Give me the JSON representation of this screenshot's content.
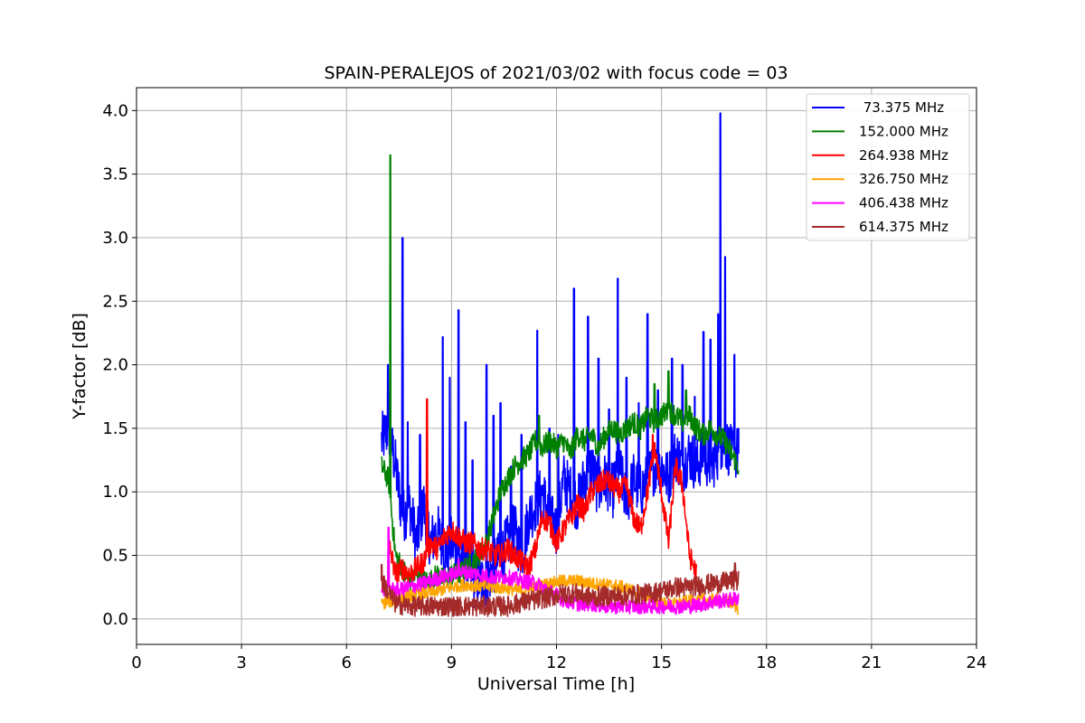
{
  "chart_data": {
    "type": "line",
    "title": "SPAIN-PERALEJOS of 2021/03/02 with focus code = 03",
    "xlabel": "Universal Time [h]",
    "ylabel": "Y-factor [dB]",
    "xlim": [
      0,
      24
    ],
    "ylim": [
      -0.2,
      4.18
    ],
    "xticks": [
      0,
      3,
      6,
      9,
      12,
      15,
      18,
      21,
      24
    ],
    "xtick_labels": [
      "0",
      "3",
      "6",
      "9",
      "12",
      "15",
      "18",
      "21",
      "24"
    ],
    "yticks": [
      0.0,
      0.5,
      1.0,
      1.5,
      2.0,
      2.5,
      3.0,
      3.5,
      4.0
    ],
    "ytick_labels": [
      "0.0",
      "0.5",
      "1.0",
      "1.5",
      "2.0",
      "2.5",
      "3.0",
      "3.5",
      "4.0"
    ],
    "grid": true,
    "legend_position": "top-right",
    "series": [
      {
        "name": " 73.375 MHz",
        "color": "#0000ff",
        "x": [
          7.0,
          7.2,
          7.4,
          7.6,
          7.8,
          8.0,
          8.2,
          8.4,
          8.6,
          8.8,
          9.0,
          9.2,
          9.4,
          9.6,
          9.8,
          10.0,
          10.2,
          10.4,
          10.6,
          10.8,
          11.0,
          11.2,
          11.4,
          11.6,
          11.8,
          12.0,
          12.2,
          12.4,
          12.6,
          12.8,
          13.0,
          13.2,
          13.4,
          13.6,
          13.8,
          14.0,
          14.2,
          14.4,
          14.6,
          14.8,
          15.0,
          15.2,
          15.4,
          15.6,
          15.8,
          16.0,
          16.2,
          16.4,
          16.6,
          16.8,
          17.0,
          17.2
        ],
        "y": [
          1.4,
          1.5,
          1.2,
          0.8,
          0.9,
          0.6,
          0.9,
          0.6,
          0.7,
          0.5,
          0.6,
          0.5,
          0.4,
          0.3,
          0.3,
          0.3,
          0.4,
          0.5,
          0.6,
          0.7,
          0.5,
          0.8,
          0.9,
          1.0,
          0.8,
          0.7,
          1.1,
          1.0,
          0.9,
          1.1,
          1.2,
          1.0,
          1.1,
          1.0,
          1.2,
          0.9,
          1.1,
          1.0,
          1.1,
          1.2,
          1.2,
          1.1,
          1.3,
          1.2,
          1.3,
          1.2,
          1.3,
          1.2,
          1.3,
          1.4,
          1.3,
          1.3
        ],
        "spikes": [
          [
            7.08,
            1.6
          ],
          [
            7.18,
            2.0
          ],
          [
            7.3,
            1.5
          ],
          [
            7.6,
            3.0
          ],
          [
            7.75,
            1.55
          ],
          [
            8.1,
            1.45
          ],
          [
            8.75,
            2.22
          ],
          [
            8.95,
            1.9
          ],
          [
            9.2,
            2.43
          ],
          [
            9.4,
            1.55
          ],
          [
            9.6,
            1.25
          ],
          [
            10.0,
            2.0
          ],
          [
            10.2,
            1.6
          ],
          [
            10.4,
            1.7
          ],
          [
            10.7,
            1.2
          ],
          [
            11.0,
            1.45
          ],
          [
            11.45,
            2.27
          ],
          [
            11.8,
            1.5
          ],
          [
            12.05,
            1.45
          ],
          [
            12.5,
            2.6
          ],
          [
            12.9,
            2.38
          ],
          [
            13.2,
            2.05
          ],
          [
            13.5,
            1.65
          ],
          [
            13.75,
            2.68
          ],
          [
            14.0,
            1.9
          ],
          [
            14.35,
            1.7
          ],
          [
            14.6,
            2.4
          ],
          [
            14.9,
            1.8
          ],
          [
            15.3,
            2.05
          ],
          [
            15.6,
            2.0
          ],
          [
            15.95,
            1.75
          ],
          [
            16.2,
            2.26
          ],
          [
            16.4,
            2.2
          ],
          [
            16.62,
            2.4
          ],
          [
            16.68,
            3.98
          ],
          [
            16.82,
            2.85
          ],
          [
            17.08,
            2.08
          ],
          [
            17.2,
            1.5
          ]
        ]
      },
      {
        "name": "152.000 MHz",
        "color": "#008000",
        "x": [
          7.0,
          7.2,
          7.4,
          7.6,
          7.8,
          8.0,
          8.2,
          8.4,
          8.6,
          8.8,
          9.0,
          9.2,
          9.4,
          9.6,
          9.8,
          10.0,
          10.2,
          10.4,
          10.6,
          10.8,
          11.0,
          11.2,
          11.4,
          11.6,
          11.8,
          12.0,
          12.2,
          12.4,
          12.6,
          12.8,
          13.0,
          13.2,
          13.4,
          13.6,
          13.8,
          14.0,
          14.2,
          14.4,
          14.6,
          14.8,
          15.0,
          15.2,
          15.4,
          15.6,
          15.8,
          16.0,
          16.2,
          16.4,
          16.6,
          16.8,
          17.0,
          17.2
        ],
        "y": [
          1.2,
          1.1,
          0.5,
          0.4,
          0.3,
          0.35,
          0.3,
          0.3,
          0.35,
          0.3,
          0.35,
          0.35,
          0.4,
          0.45,
          0.5,
          0.6,
          0.8,
          1.0,
          1.1,
          1.2,
          1.25,
          1.3,
          1.4,
          1.35,
          1.4,
          1.35,
          1.4,
          1.3,
          1.45,
          1.4,
          1.45,
          1.35,
          1.45,
          1.5,
          1.45,
          1.5,
          1.55,
          1.5,
          1.6,
          1.55,
          1.6,
          1.65,
          1.6,
          1.55,
          1.6,
          1.5,
          1.45,
          1.5,
          1.45,
          1.4,
          1.3,
          1.2
        ],
        "spikes": [
          [
            7.25,
            3.65
          ],
          [
            11.5,
            1.6
          ],
          [
            14.8,
            1.85
          ],
          [
            15.2,
            1.95
          ],
          [
            15.7,
            1.8
          ]
        ]
      },
      {
        "name": "264.938 MHz",
        "color": "#ff0000",
        "x": [
          7.2,
          7.4,
          7.6,
          7.8,
          8.0,
          8.2,
          8.4,
          8.6,
          8.8,
          9.0,
          9.2,
          9.4,
          9.6,
          9.8,
          10.0,
          10.2,
          10.4,
          10.6,
          10.8,
          11.0,
          11.2,
          11.4,
          11.6,
          11.8,
          12.0,
          12.2,
          12.4,
          12.6,
          12.8,
          13.0,
          13.2,
          13.4,
          13.6,
          13.8,
          14.0,
          14.2,
          14.4,
          14.6,
          14.8,
          15.0,
          15.2,
          15.4,
          15.6,
          15.8,
          16.0
        ],
        "y": [
          0.6,
          0.35,
          0.4,
          0.35,
          0.4,
          0.45,
          0.6,
          0.55,
          0.65,
          0.7,
          0.65,
          0.6,
          0.6,
          0.55,
          0.55,
          0.5,
          0.5,
          0.55,
          0.5,
          0.45,
          0.4,
          0.55,
          0.8,
          0.75,
          0.6,
          0.7,
          0.8,
          0.9,
          0.85,
          1.0,
          1.05,
          1.1,
          1.05,
          1.0,
          1.05,
          0.8,
          0.7,
          1.0,
          1.35,
          1.0,
          0.6,
          1.2,
          1.05,
          0.5,
          0.35
        ],
        "spikes": [
          [
            8.3,
            1.73
          ],
          [
            14.75,
            1.45
          ]
        ]
      },
      {
        "name": "326.750 MHz",
        "color": "#ffa500",
        "x": [
          7.0,
          7.4,
          7.8,
          8.2,
          8.6,
          9.0,
          9.4,
          9.8,
          10.2,
          10.6,
          11.0,
          11.4,
          11.8,
          12.2,
          12.6,
          13.0,
          13.4,
          13.8,
          14.2,
          14.6,
          15.0,
          15.4,
          15.8,
          16.2,
          16.6,
          17.0,
          17.2
        ],
        "y": [
          0.12,
          0.15,
          0.18,
          0.2,
          0.22,
          0.25,
          0.27,
          0.26,
          0.25,
          0.24,
          0.22,
          0.25,
          0.28,
          0.3,
          0.3,
          0.28,
          0.27,
          0.26,
          0.22,
          0.18,
          0.12,
          0.12,
          0.14,
          0.15,
          0.15,
          0.13,
          0.08
        ],
        "spikes": []
      },
      {
        "name": "406.438 MHz",
        "color": "#ff00ff",
        "x": [
          7.0,
          7.2,
          7.4,
          7.8,
          8.2,
          8.6,
          9.0,
          9.4,
          9.8,
          10.2,
          10.6,
          11.0,
          11.4,
          11.8,
          12.2,
          12.6,
          13.0,
          13.4,
          13.8,
          14.2,
          14.6,
          15.0,
          15.4,
          15.8,
          16.2,
          16.6,
          17.0,
          17.2
        ],
        "y": [
          0.22,
          0.25,
          0.22,
          0.25,
          0.28,
          0.32,
          0.35,
          0.37,
          0.35,
          0.33,
          0.33,
          0.3,
          0.28,
          0.22,
          0.15,
          0.12,
          0.12,
          0.1,
          0.1,
          0.1,
          0.1,
          0.1,
          0.1,
          0.1,
          0.12,
          0.14,
          0.15,
          0.17
        ],
        "spikes": [
          [
            7.2,
            0.72
          ],
          [
            9.2,
            0.47
          ]
        ]
      },
      {
        "name": "614.375 MHz",
        "color": "#a52a2a",
        "x": [
          7.0,
          7.4,
          7.8,
          8.2,
          8.6,
          9.0,
          9.4,
          9.8,
          10.2,
          10.6,
          11.0,
          11.4,
          11.8,
          12.2,
          12.6,
          13.0,
          13.4,
          13.8,
          14.2,
          14.6,
          15.0,
          15.4,
          15.8,
          16.2,
          16.6,
          17.0,
          17.2
        ],
        "y": [
          0.3,
          0.12,
          0.1,
          0.1,
          0.1,
          0.1,
          0.1,
          0.1,
          0.1,
          0.1,
          0.13,
          0.15,
          0.17,
          0.2,
          0.2,
          0.17,
          0.18,
          0.18,
          0.19,
          0.2,
          0.22,
          0.25,
          0.25,
          0.27,
          0.28,
          0.3,
          0.3
        ],
        "spikes": [
          [
            7.0,
            0.43
          ],
          [
            17.1,
            0.44
          ]
        ]
      }
    ]
  }
}
